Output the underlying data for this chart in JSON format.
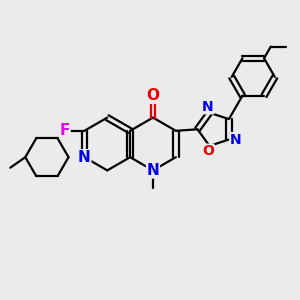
{
  "bg_color": "#ebebeb",
  "bond_color": "#000000",
  "bond_width": 1.6,
  "atom_label_colors": {
    "N": "#0000ee",
    "O": "#ee0000",
    "F": "#ee00ee",
    "C": "#000000"
  },
  "font_size": 10,
  "fig_width": 3.0,
  "fig_height": 3.0,
  "dpi": 100
}
